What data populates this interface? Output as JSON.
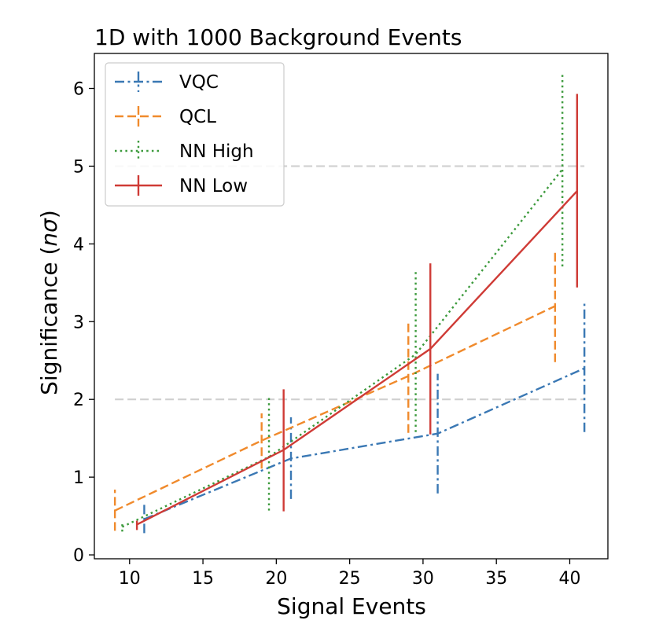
{
  "chart_data": {
    "type": "line",
    "title": "1D with 1000 Background Events",
    "xlabel": "Signal Events",
    "ylabel_main": "Significance (",
    "ylabel_italic": "nσ",
    "ylabel_end": ")",
    "xlim": [
      7.6,
      42.6
    ],
    "ylim": [
      -0.05,
      6.45
    ],
    "xticks": [
      10,
      15,
      20,
      25,
      30,
      35,
      40
    ],
    "yticks": [
      0,
      1,
      2,
      3,
      4,
      5,
      6
    ],
    "reference_lines": [
      2,
      5
    ],
    "legend_position": "upper-left",
    "grid": false,
    "series": [
      {
        "name": "VQC",
        "color": "#3a78b4",
        "style": "dashdot",
        "points": [
          {
            "x": 11,
            "y": 0.46,
            "lo": 0.28,
            "hi": 0.65
          },
          {
            "x": 21,
            "y": 1.24,
            "lo": 0.72,
            "hi": 1.77
          },
          {
            "x": 31,
            "y": 1.56,
            "lo": 0.79,
            "hi": 2.33
          },
          {
            "x": 41,
            "y": 2.4,
            "lo": 1.58,
            "hi": 3.23
          }
        ]
      },
      {
        "name": "QCL",
        "color": "#f08a2c",
        "style": "dashed",
        "points": [
          {
            "x": 9,
            "y": 0.57,
            "lo": 0.31,
            "hi": 0.84
          },
          {
            "x": 19,
            "y": 1.47,
            "lo": 1.11,
            "hi": 1.82
          },
          {
            "x": 29,
            "y": 2.3,
            "lo": 1.57,
            "hi": 2.98
          },
          {
            "x": 39,
            "y": 3.2,
            "lo": 2.48,
            "hi": 3.89
          }
        ]
      },
      {
        "name": "NN High",
        "color": "#3c9a3c",
        "style": "dotted",
        "points": [
          {
            "x": 9.5,
            "y": 0.36,
            "lo": 0.3,
            "hi": 0.42
          },
          {
            "x": 19.5,
            "y": 1.26,
            "lo": 0.57,
            "hi": 2.02
          },
          {
            "x": 29.5,
            "y": 2.58,
            "lo": 1.58,
            "hi": 3.68
          },
          {
            "x": 39.5,
            "y": 4.96,
            "lo": 3.71,
            "hi": 6.21
          }
        ]
      },
      {
        "name": "NN Low",
        "color": "#cf3b36",
        "style": "solid",
        "points": [
          {
            "x": 10.5,
            "y": 0.39,
            "lo": 0.32,
            "hi": 0.44
          },
          {
            "x": 20.5,
            "y": 1.35,
            "lo": 0.56,
            "hi": 2.13
          },
          {
            "x": 30.5,
            "y": 2.65,
            "lo": 1.55,
            "hi": 3.75
          },
          {
            "x": 40.5,
            "y": 4.68,
            "lo": 3.44,
            "hi": 5.93
          }
        ]
      }
    ]
  }
}
